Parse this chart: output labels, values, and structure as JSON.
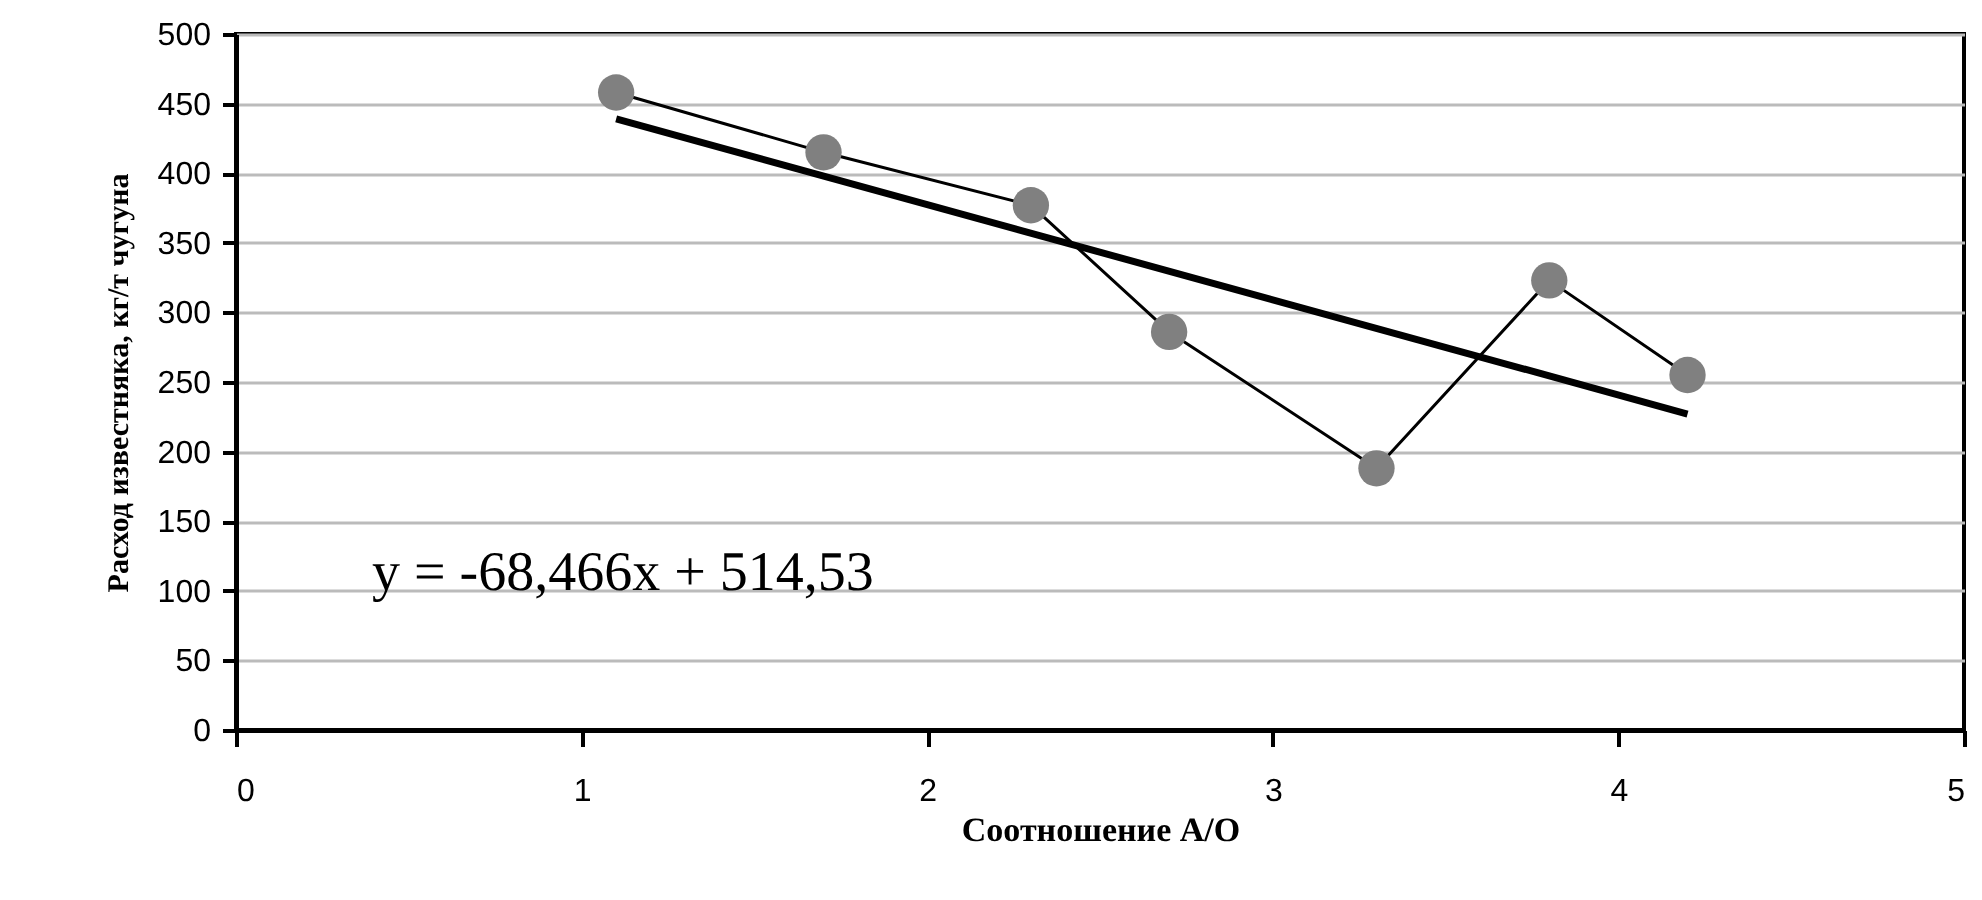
{
  "chart_data": {
    "type": "line",
    "xlabel": "Соотношение А/О",
    "ylabel": "Расход известняка, кг/т чугуна",
    "xlim": [
      0,
      5
    ],
    "xticks": [
      0,
      1,
      2,
      3,
      4,
      5
    ],
    "ylim": [
      0,
      500
    ],
    "yticks": [
      0,
      50,
      100,
      150,
      200,
      250,
      300,
      350,
      400,
      450,
      500
    ],
    "grid": "y",
    "series": [
      {
        "marker": "circle",
        "color": "#808080",
        "x": [
          1.1,
          1.7,
          2.3,
          2.7,
          3.3,
          3.8,
          4.2
        ],
        "values": [
          458,
          415,
          377,
          286,
          188,
          323,
          255
        ]
      },
      {
        "marker": "none",
        "color": "#000000",
        "x": [
          1.1,
          4.2
        ],
        "values": [
          439,
          227
        ]
      }
    ],
    "annotations": [
      "y = -68,466x + 514,53"
    ]
  }
}
